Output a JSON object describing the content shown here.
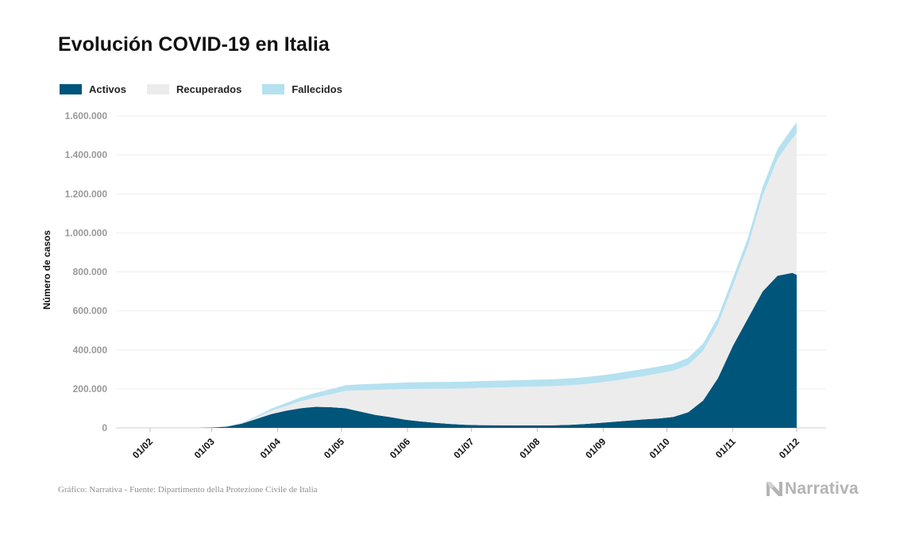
{
  "title": "Evolución COVID-19 en Italia",
  "legend": [
    {
      "label": "Activos",
      "color": "#00557b"
    },
    {
      "label": "Recuperados",
      "color": "#ececec"
    },
    {
      "label": "Fallecidos",
      "color": "#b5e1f0"
    }
  ],
  "source": "Gráfico: Narrativa - Fuente: Dipartimento della Protezione Civile de Italia",
  "brand": {
    "name": "Narrativa",
    "icon": "narrativa-n-logo-icon"
  },
  "chart_data": {
    "type": "area",
    "stacked": true,
    "title": "Evolución COVID-19 en Italia",
    "xlabel": "",
    "ylabel": "Número de casos",
    "ylim": [
      0,
      1600000
    ],
    "yticks": [
      0,
      200000,
      400000,
      600000,
      800000,
      1000000,
      1200000,
      1400000,
      1600000
    ],
    "ytick_labels": [
      "0",
      "200.000",
      "400.000",
      "600.000",
      "800.000",
      "1.000.000",
      "1.200.000",
      "1.400.000",
      "1.600.000"
    ],
    "xticks": [
      "2020-02-01",
      "2020-03-01",
      "2020-04-01",
      "2020-05-01",
      "2020-06-01",
      "2020-07-01",
      "2020-08-01",
      "2020-09-01",
      "2020-10-01",
      "2020-11-01",
      "2020-12-01"
    ],
    "xtick_labels": [
      "01/02",
      "01/03",
      "01/04",
      "01/05",
      "01/06",
      "01/07",
      "01/08",
      "01/09",
      "01/10",
      "01/11",
      "01/12"
    ],
    "grid": "horizontal",
    "legend_position": "top-left",
    "x": [
      "2020-02-24",
      "2020-03-01",
      "2020-03-08",
      "2020-03-15",
      "2020-03-22",
      "2020-03-29",
      "2020-04-05",
      "2020-04-12",
      "2020-04-19",
      "2020-04-26",
      "2020-05-03",
      "2020-05-10",
      "2020-05-17",
      "2020-05-24",
      "2020-05-31",
      "2020-06-07",
      "2020-06-14",
      "2020-06-21",
      "2020-06-28",
      "2020-07-05",
      "2020-07-12",
      "2020-07-19",
      "2020-07-26",
      "2020-08-02",
      "2020-08-09",
      "2020-08-16",
      "2020-08-23",
      "2020-08-30",
      "2020-09-06",
      "2020-09-13",
      "2020-09-20",
      "2020-09-27",
      "2020-10-04",
      "2020-10-11",
      "2020-10-18",
      "2020-10-25",
      "2020-11-01",
      "2020-11-08",
      "2020-11-15",
      "2020-11-22",
      "2020-11-29",
      "2020-12-01"
    ],
    "series": [
      {
        "name": "Activos",
        "color": "#00557b",
        "values": [
          200,
          1600,
          6000,
          21000,
          46000,
          71000,
          88000,
          101000,
          108000,
          106000,
          100000,
          83000,
          66000,
          55000,
          42000,
          33000,
          26000,
          20000,
          16000,
          14000,
          13000,
          12500,
          12400,
          12300,
          13000,
          15000,
          19000,
          25000,
          31000,
          37000,
          43000,
          48000,
          56000,
          80000,
          140000,
          255000,
          420000,
          560000,
          700000,
          780000,
          795000,
          785000
        ]
      },
      {
        "name": "Recuperados",
        "color": "#ececec",
        "values": [
          0,
          60,
          600,
          2400,
          8000,
          17000,
          24000,
          36000,
          48000,
          66000,
          90000,
          110000,
          128000,
          142000,
          157000,
          167000,
          175000,
          181000,
          186000,
          191000,
          194000,
          196000,
          198000,
          200000,
          201000,
          203000,
          205000,
          207000,
          211000,
          217000,
          223000,
          231000,
          237000,
          243000,
          255000,
          275000,
          310000,
          370000,
          490000,
          600000,
          690000,
          725000
        ]
      },
      {
        "name": "Fallecidos",
        "color": "#b5e1f0",
        "values": [
          7,
          30,
          400,
          1800,
          5500,
          10800,
          15900,
          20000,
          23500,
          26500,
          28900,
          30600,
          32000,
          32800,
          33400,
          33900,
          34300,
          34600,
          34800,
          34900,
          35000,
          35100,
          35100,
          35200,
          35200,
          35300,
          35400,
          35500,
          35600,
          35700,
          35800,
          35900,
          36000,
          36300,
          37000,
          38000,
          39000,
          42000,
          46000,
          50000,
          54000,
          56000
        ]
      }
    ]
  }
}
